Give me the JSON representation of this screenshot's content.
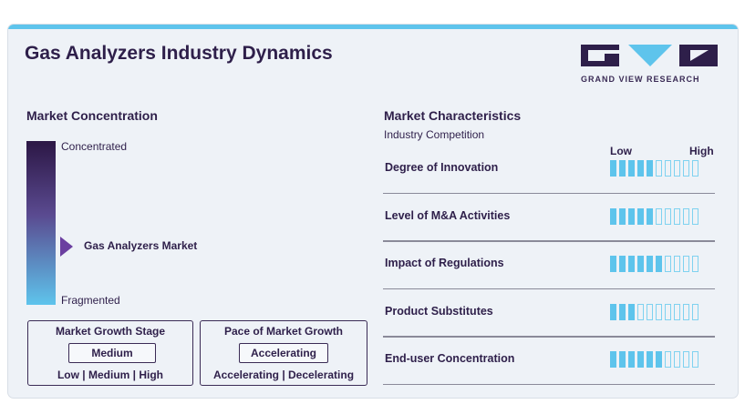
{
  "title": "Gas Analyzers Industry Dynamics",
  "logo": {
    "text": "GRAND VIEW RESEARCH"
  },
  "colors": {
    "accent": "#5ec4ec",
    "dark": "#2e1f4a",
    "marker": "#6b3fa0"
  },
  "market_concentration": {
    "heading": "Market Concentration",
    "top_label": "Concentrated",
    "bottom_label": "Fragmented",
    "marker_label": "Gas Analyzers Market",
    "marker_position_fraction_from_top": 0.64
  },
  "growth_stage": {
    "title": "Market Growth Stage",
    "value": "Medium",
    "scale": "Low | Medium | High"
  },
  "growth_pace": {
    "title": "Pace of Market Growth",
    "value": "Accelerating",
    "scale": "Accelerating | Decelerating"
  },
  "characteristics": {
    "heading": "Market Characteristics",
    "subheading": "Industry Competition",
    "low_label": "Low",
    "high_label": "High"
  },
  "chart_data": {
    "type": "table",
    "title": "Market Characteristics",
    "scale_max": 10,
    "rows": [
      {
        "label": "Degree of Innovation",
        "value": 5
      },
      {
        "label": "Level of M&A Activities",
        "value": 5
      },
      {
        "label": "Impact of Regulations",
        "value": 6
      },
      {
        "label": "Product Substitutes",
        "value": 3
      },
      {
        "label": "End-user Concentration",
        "value": 6
      }
    ]
  }
}
